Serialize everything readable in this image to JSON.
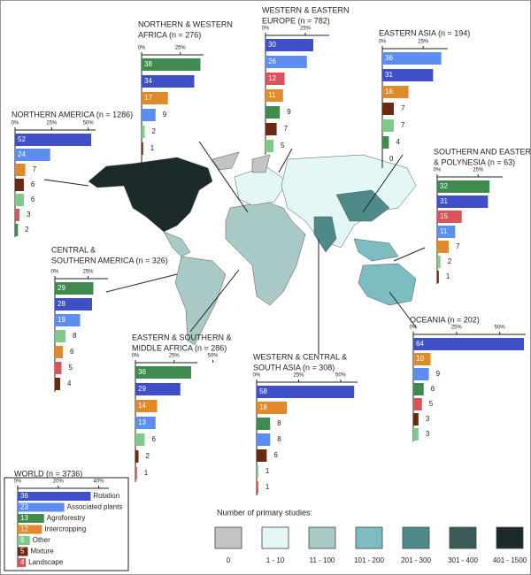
{
  "chart_data": [
    {
      "type": "bar",
      "title": [
        "NORTHERN AMERICA (n = 1286)"
      ],
      "values": [
        52,
        24,
        7,
        6,
        6,
        3,
        2
      ],
      "colors": [
        "#3f4fc8",
        "#5b8ef0",
        "#e08a2c",
        "#6b2a10",
        "#7fc98a",
        "#d9545a",
        "#3f8a4f"
      ],
      "xlim": [
        0,
        55
      ],
      "xticks": [
        {
          "value": 0,
          "label": "0%"
        },
        {
          "value": 25,
          "label": "25%"
        },
        {
          "value": 50,
          "label": "50%"
        }
      ]
    },
    {
      "type": "bar",
      "title": [
        "NORTHERN & WESTERN",
        "AFRICA (n = 276)"
      ],
      "values": [
        38,
        34,
        17,
        9,
        2,
        1,
        0
      ],
      "colors": [
        "#3f8a4f",
        "#3f4fc8",
        "#e08a2c",
        "#5b8ef0",
        "#7fc98a",
        "#6b2a10",
        "#999999"
      ],
      "xlim": [
        0,
        40
      ],
      "xticks": [
        {
          "value": 0,
          "label": "0%"
        },
        {
          "value": 25,
          "label": "25%"
        }
      ]
    },
    {
      "type": "bar",
      "title": [
        "WESTERN & EASTERN",
        "EUROPE (n = 782)"
      ],
      "values": [
        30,
        26,
        12,
        11,
        9,
        7,
        5
      ],
      "colors": [
        "#3f4fc8",
        "#5b8ef0",
        "#d9545a",
        "#e08a2c",
        "#3f8a4f",
        "#6b2a10",
        "#7fc98a"
      ],
      "xlim": [
        0,
        40
      ],
      "xticks": [
        {
          "value": 0,
          "label": "0%"
        },
        {
          "value": 25,
          "label": "25%"
        }
      ]
    },
    {
      "type": "bar",
      "title": [
        "EASTERN ASIA (n = 194)"
      ],
      "values": [
        36,
        31,
        16,
        7,
        7,
        4,
        0
      ],
      "colors": [
        "#5b8ef0",
        "#3f4fc8",
        "#e08a2c",
        "#6b2a10",
        "#7fc98a",
        "#3f8a4f",
        "#999999"
      ],
      "xlim": [
        0,
        40
      ],
      "xticks": [
        {
          "value": 0,
          "label": "0%"
        },
        {
          "value": 25,
          "label": "25%"
        }
      ]
    },
    {
      "type": "bar",
      "title": [
        "SOUTHERN AND EASTERN ASIA",
        "& POLYNESIA (n = 63)"
      ],
      "values": [
        32,
        31,
        15,
        11,
        7,
        2,
        1
      ],
      "colors": [
        "#3f8a4f",
        "#3f4fc8",
        "#d9545a",
        "#5b8ef0",
        "#e08a2c",
        "#7fc98a",
        "#6b2a10"
      ],
      "xlim": [
        0,
        40
      ],
      "xticks": [
        {
          "value": 0,
          "label": "0%"
        },
        {
          "value": 25,
          "label": "25%"
        }
      ]
    },
    {
      "type": "bar",
      "title": [
        "CENTRAL &",
        "SOUTHERN AMERICA (n = 326)"
      ],
      "values": [
        29,
        28,
        19,
        8,
        6,
        5,
        4
      ],
      "colors": [
        "#3f8a4f",
        "#3f4fc8",
        "#5b8ef0",
        "#7fc98a",
        "#e08a2c",
        "#d9545a",
        "#6b2a10"
      ],
      "xlim": [
        0,
        40
      ],
      "xticks": [
        {
          "value": 0,
          "label": "0%"
        },
        {
          "value": 25,
          "label": "25%"
        }
      ]
    },
    {
      "type": "bar",
      "title": [
        "EASTERN & SOUTHERN &",
        "MIDDLE AFRICA (n = 286)"
      ],
      "values": [
        36,
        29,
        14,
        13,
        6,
        2,
        1
      ],
      "colors": [
        "#3f8a4f",
        "#3f4fc8",
        "#e08a2c",
        "#5b8ef0",
        "#7fc98a",
        "#6b2a10",
        "#d9545a"
      ],
      "xlim": [
        0,
        40
      ],
      "xticks": [
        {
          "value": 0,
          "label": "0%"
        },
        {
          "value": 25,
          "label": "25%"
        },
        {
          "value": 50,
          "label": "50%"
        }
      ]
    },
    {
      "type": "bar",
      "title": [
        "WESTERN & CENTRAL &",
        "SOUTH ASIA (n = 308)"
      ],
      "values": [
        58,
        18,
        8,
        8,
        6,
        1,
        1
      ],
      "colors": [
        "#3f4fc8",
        "#e08a2c",
        "#3f8a4f",
        "#5b8ef0",
        "#6b2a10",
        "#7fc98a",
        "#d9545a"
      ],
      "xlim": [
        0,
        60
      ],
      "xticks": [
        {
          "value": 0,
          "label": "0%"
        },
        {
          "value": 25,
          "label": "25%"
        },
        {
          "value": 50,
          "label": "50%"
        }
      ]
    },
    {
      "type": "bar",
      "title": [
        "OCEANIA (n = 202)"
      ],
      "values": [
        64,
        10,
        9,
        6,
        5,
        3,
        3
      ],
      "colors": [
        "#3f4fc8",
        "#e08a2c",
        "#5b8ef0",
        "#3f8a4f",
        "#d9545a",
        "#6b2a10",
        "#7fc98a"
      ],
      "xlim": [
        0,
        65
      ],
      "xticks": [
        {
          "value": 0,
          "label": "0%"
        },
        {
          "value": 25,
          "label": "25%"
        },
        {
          "value": 50,
          "label": "50%"
        }
      ]
    },
    {
      "type": "bar",
      "title": [
        "WORLD (n = 3736)"
      ],
      "categories": [
        "Rotation",
        "Associated plants",
        "Agroforestry",
        "Intercropping",
        "Other",
        "Mixture",
        "Landscape"
      ],
      "values": [
        36,
        23,
        13,
        12,
        6,
        5,
        4
      ],
      "colors": [
        "#3f4fc8",
        "#5b8ef0",
        "#3f8a4f",
        "#e08a2c",
        "#7fc98a",
        "#6b2a10",
        "#d9545a"
      ],
      "xlim": [
        0,
        45
      ],
      "xticks": [
        {
          "value": 0,
          "label": "0%"
        },
        {
          "value": 20,
          "label": "20%"
        },
        {
          "value": 40,
          "label": "40%"
        }
      ]
    }
  ],
  "map_legend": {
    "title": "Number of primary studies:",
    "labels": [
      "0",
      "1 - 10",
      "11 - 100",
      "101 - 200",
      "201 - 300",
      "301 - 400",
      "401 - 1500"
    ],
    "colors": [
      "#c4c4c4",
      "#e4f7f7",
      "#a9c9c6",
      "#7dbcc0",
      "#4f8a88",
      "#3c5a5a",
      "#1c2a2a"
    ]
  }
}
